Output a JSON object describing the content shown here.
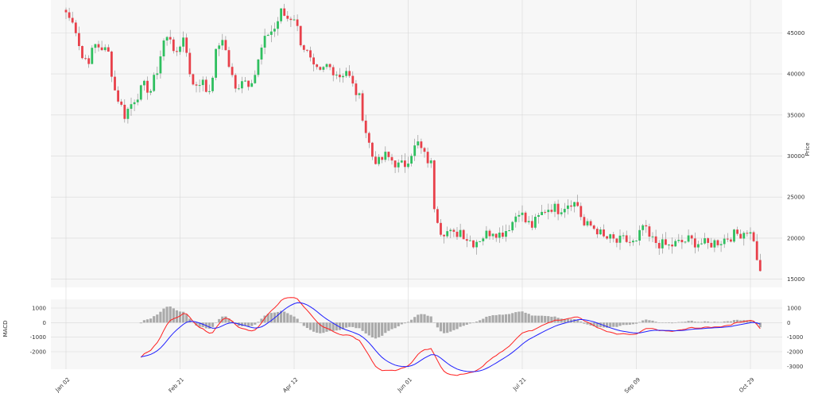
{
  "chart_data": [
    {
      "type": "candlestick",
      "ylabel": "Price",
      "yticks": [
        15000,
        20000,
        25000,
        30000,
        35000,
        40000,
        45000
      ],
      "ylim": [
        14000,
        49000
      ],
      "xticks": [
        "Jan 02",
        "Feb 21",
        "Apr 12",
        "Jun 01",
        "Jul 21",
        "Sep 09",
        "Oct 29"
      ],
      "xtick_index": [
        0,
        35,
        70,
        105,
        140,
        175,
        210
      ],
      "trading_days": 214,
      "anchor_closes": [
        [
          0,
          47500
        ],
        [
          3,
          45500
        ],
        [
          5,
          42000
        ],
        [
          7,
          41800
        ],
        [
          9,
          43500
        ],
        [
          11,
          43200
        ],
        [
          13,
          42500
        ],
        [
          15,
          38000
        ],
        [
          18,
          35000
        ],
        [
          21,
          37000
        ],
        [
          24,
          38500
        ],
        [
          26,
          38000
        ],
        [
          28,
          40500
        ],
        [
          30,
          44000
        ],
        [
          32,
          44500
        ],
        [
          34,
          42000
        ],
        [
          36,
          44800
        ],
        [
          38,
          40200
        ],
        [
          40,
          38200
        ],
        [
          42,
          39500
        ],
        [
          44,
          37300
        ],
        [
          46,
          42500
        ],
        [
          48,
          44500
        ],
        [
          50,
          41000
        ],
        [
          52,
          38000
        ],
        [
          54,
          39500
        ],
        [
          56,
          39000
        ],
        [
          58,
          40000
        ],
        [
          60,
          43000
        ],
        [
          62,
          45000
        ],
        [
          64,
          45500
        ],
        [
          66,
          47500
        ],
        [
          68,
          46800
        ],
        [
          70,
          47000
        ],
        [
          72,
          44000
        ],
        [
          74,
          42500
        ],
        [
          76,
          40500
        ],
        [
          78,
          40000
        ],
        [
          80,
          41000
        ],
        [
          82,
          40500
        ],
        [
          84,
          39800
        ],
        [
          86,
          40500
        ],
        [
          88,
          38500
        ],
        [
          90,
          37000
        ],
        [
          92,
          33000
        ],
        [
          94,
          30000
        ],
        [
          96,
          29200
        ],
        [
          98,
          30000
        ],
        [
          100,
          29500
        ],
        [
          102,
          28800
        ],
        [
          104,
          29000
        ],
        [
          106,
          30500
        ],
        [
          108,
          31500
        ],
        [
          110,
          30000
        ],
        [
          112,
          29000
        ],
        [
          113,
          24000
        ],
        [
          115,
          21000
        ],
        [
          117,
          20800
        ],
        [
          119,
          20300
        ],
        [
          121,
          21000
        ],
        [
          123,
          20000
        ],
        [
          125,
          19500
        ],
        [
          127,
          20000
        ],
        [
          129,
          20500
        ],
        [
          131,
          21000
        ],
        [
          133,
          20500
        ],
        [
          135,
          21000
        ],
        [
          137,
          22000
        ],
        [
          139,
          23500
        ],
        [
          141,
          22000
        ],
        [
          143,
          21500
        ],
        [
          145,
          22500
        ],
        [
          147,
          23500
        ],
        [
          149,
          23800
        ],
        [
          151,
          23500
        ],
        [
          153,
          24000
        ],
        [
          155,
          24500
        ],
        [
          157,
          24000
        ],
        [
          159,
          21500
        ],
        [
          161,
          21500
        ],
        [
          163,
          21000
        ],
        [
          165,
          20000
        ],
        [
          167,
          19900
        ],
        [
          169,
          19500
        ],
        [
          171,
          19800
        ],
        [
          173,
          19500
        ],
        [
          175,
          19300
        ],
        [
          177,
          21500
        ],
        [
          179,
          20000
        ],
        [
          181,
          19500
        ],
        [
          183,
          19200
        ],
        [
          185,
          19000
        ],
        [
          187,
          19300
        ],
        [
          189,
          19500
        ],
        [
          191,
          19800
        ],
        [
          193,
          19500
        ],
        [
          195,
          19400
        ],
        [
          197,
          19200
        ],
        [
          199,
          19500
        ],
        [
          201,
          19700
        ],
        [
          203,
          20100
        ],
        [
          205,
          20400
        ],
        [
          207,
          20600
        ],
        [
          209,
          21000
        ],
        [
          211,
          20000
        ],
        [
          212,
          17000
        ],
        [
          213,
          16000
        ]
      ]
    },
    {
      "type": "macd",
      "ylabel": "MACD",
      "left_yticks": [
        -2000,
        -1000,
        0,
        1000
      ],
      "right_yticks": [
        -3000,
        -2000,
        -1000,
        0,
        1000
      ],
      "ylim": [
        -3200,
        1600
      ],
      "start_index": 23,
      "colors": {
        "macd": "#ff2020",
        "signal": "#2020ff",
        "histogram": "#aaaaaa"
      }
    }
  ],
  "colors": {
    "up": "#2fbf5f",
    "down": "#e8404a",
    "grid": "#d8d8d8",
    "panel_bg": "#f7f7f7"
  }
}
